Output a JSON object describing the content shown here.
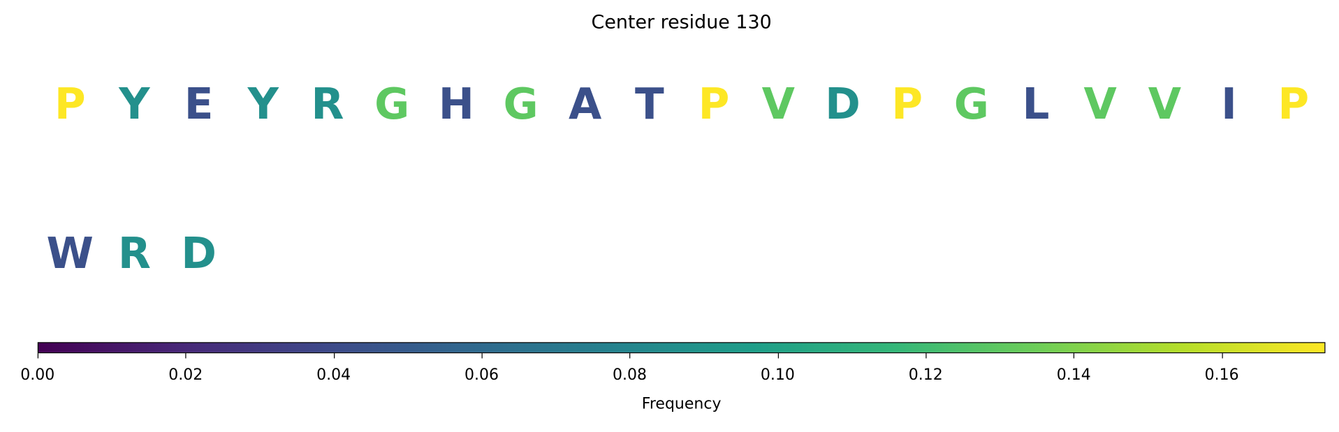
{
  "chart_data": {
    "type": "sequence-logo-grid",
    "title": "Center residue 130",
    "rows": [
      [
        {
          "letter": "P",
          "value": 0.174
        },
        {
          "letter": "Y",
          "value": 0.087
        },
        {
          "letter": "E",
          "value": 0.043
        },
        {
          "letter": "Y",
          "value": 0.087
        },
        {
          "letter": "R",
          "value": 0.087
        },
        {
          "letter": "G",
          "value": 0.13
        },
        {
          "letter": "H",
          "value": 0.043
        },
        {
          "letter": "G",
          "value": 0.13
        },
        {
          "letter": "A",
          "value": 0.043
        },
        {
          "letter": "T",
          "value": 0.043
        },
        {
          "letter": "P",
          "value": 0.174
        },
        {
          "letter": "V",
          "value": 0.13
        },
        {
          "letter": "D",
          "value": 0.087
        },
        {
          "letter": "P",
          "value": 0.174
        },
        {
          "letter": "G",
          "value": 0.13
        },
        {
          "letter": "L",
          "value": 0.043
        },
        {
          "letter": "V",
          "value": 0.13
        },
        {
          "letter": "V",
          "value": 0.13
        },
        {
          "letter": "I",
          "value": 0.043
        },
        {
          "letter": "P",
          "value": 0.174
        }
      ],
      [
        {
          "letter": "W",
          "value": 0.043
        },
        {
          "letter": "R",
          "value": 0.087
        },
        {
          "letter": "D",
          "value": 0.087
        }
      ]
    ],
    "colorbar": {
      "colormap": "viridis",
      "range": [
        0,
        0.174
      ],
      "ticks": [
        0,
        0.02,
        0.04,
        0.06,
        0.08,
        0.1,
        0.12,
        0.14,
        0.16
      ],
      "tick_labels": [
        "0.00",
        "0.02",
        "0.04",
        "0.06",
        "0.08",
        "0.10",
        "0.12",
        "0.14",
        "0.16"
      ],
      "label": "Frequency",
      "placement": "bottom"
    }
  }
}
